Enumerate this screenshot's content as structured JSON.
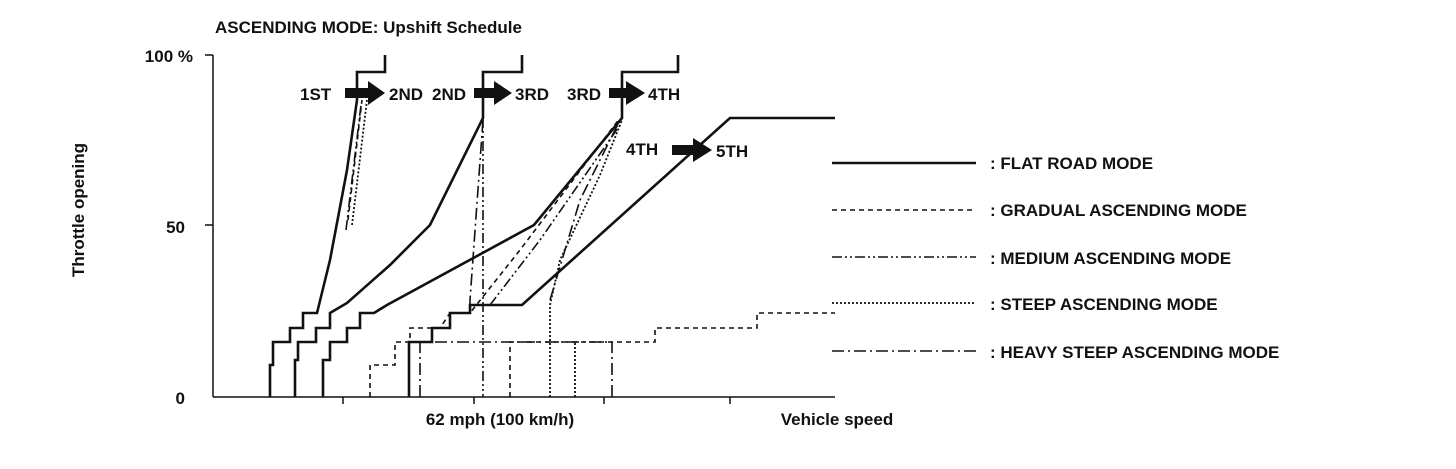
{
  "title": "ASCENDING MODE: Upshift Schedule",
  "y_axis": {
    "label": "Throttle opening",
    "ticks": [
      "100 %",
      "50",
      "0"
    ]
  },
  "x_axis": {
    "label": "Vehicle speed",
    "marker": "62 mph (100 km/h)"
  },
  "shifts": [
    "1ST",
    "2ND",
    "2ND",
    "3RD",
    "3RD",
    "4TH",
    "4TH",
    "5TH"
  ],
  "legend": [
    ": FLAT ROAD MODE",
    ": GRADUAL ASCENDING MODE",
    ": MEDIUM ASCENDING MODE",
    ": STEEP ASCENDING MODE",
    ": HEAVY STEEP ASCENDING MODE"
  ]
}
